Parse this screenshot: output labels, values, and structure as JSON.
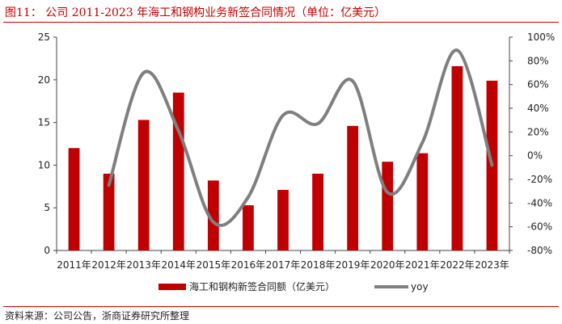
{
  "figure": {
    "title": "图11：  公司 2011-2023 年海工和钢构业务新签合同情况（单位：亿美元）",
    "source": "资料来源：公司公告，浙商证券研究所整理"
  },
  "colors": {
    "bar": "#c00000",
    "line": "#7f7f7f",
    "accent": "#c00000"
  },
  "chart_data": {
    "type": "bar",
    "categories": [
      "2011年",
      "2012年",
      "2013年",
      "2014年",
      "2015年",
      "2016年",
      "2017年",
      "2018年",
      "2019年",
      "2020年",
      "2021年",
      "2022年",
      "2023年"
    ],
    "series": [
      {
        "name": "海工和钢构新签合同额（亿美元）",
        "type": "bar",
        "axis": "left",
        "values": [
          12.0,
          9.0,
          15.3,
          18.5,
          8.2,
          5.3,
          7.1,
          9.0,
          14.6,
          10.4,
          11.4,
          21.6,
          19.9
        ]
      },
      {
        "name": "yoy",
        "type": "line",
        "axis": "right",
        "smooth": true,
        "values": [
          null,
          -0.25,
          0.7,
          0.21,
          -0.56,
          -0.35,
          0.34,
          0.27,
          0.63,
          -0.31,
          0.11,
          0.89,
          -0.08
        ]
      }
    ],
    "y_left": {
      "min": 0,
      "max": 25,
      "step": 5,
      "ticks": [
        "0",
        "5",
        "10",
        "15",
        "20",
        "25"
      ]
    },
    "y_right": {
      "min": -0.8,
      "max": 1.0,
      "step": 0.2,
      "ticks": [
        "-80%",
        "-60%",
        "-40%",
        "-20%",
        "0%",
        "20%",
        "40%",
        "60%",
        "80%",
        "100%"
      ]
    },
    "grid": false,
    "legend_position": "bottom"
  }
}
